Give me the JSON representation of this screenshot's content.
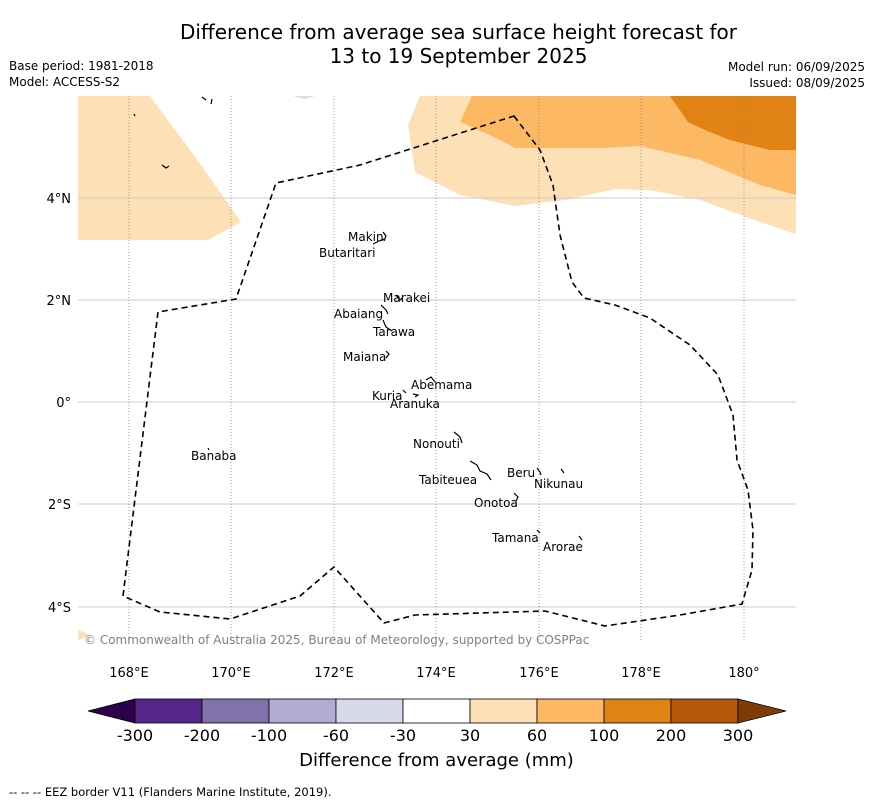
{
  "title": {
    "line1": "Difference from average sea surface height forecast for",
    "line2": "13 to 19 September 2025"
  },
  "meta_left": {
    "base_period": "Base period: 1981-2018",
    "model": "Model: ACCESS-S2"
  },
  "meta_right": {
    "model_run": "Model run: 06/09/2025",
    "issued": "Issued: 08/09/2025"
  },
  "axes": {
    "lon_ticks": [
      "168°E",
      "170°E",
      "172°E",
      "174°E",
      "176°E",
      "178°E",
      "180°"
    ],
    "lat_ticks": [
      "4°N",
      "2°N",
      "0°",
      "2°S",
      "4°S"
    ]
  },
  "places": [
    {
      "name": "Makin"
    },
    {
      "name": "Butaritari"
    },
    {
      "name": "Marakei"
    },
    {
      "name": "Abaiang"
    },
    {
      "name": "Tarawa"
    },
    {
      "name": "Maiana"
    },
    {
      "name": "Abemama"
    },
    {
      "name": "Kuria"
    },
    {
      "name": "Aranuka"
    },
    {
      "name": "Nonouti"
    },
    {
      "name": "Banaba"
    },
    {
      "name": "Beru"
    },
    {
      "name": "Tabiteuea"
    },
    {
      "name": "Nikunau"
    },
    {
      "name": "Onotoa"
    },
    {
      "name": "Tamana"
    },
    {
      "name": "Arorae"
    }
  ],
  "copyright": "© Commonwealth of Australia 2025, Bureau of Meteorology, supported by COSPPac",
  "colorbar": {
    "title": "Difference from average (mm)",
    "ticks": [
      "-300",
      "-200",
      "-100",
      "-60",
      "-30",
      "30",
      "60",
      "100",
      "200",
      "300"
    ],
    "colors": {
      "lt_minus300": "#2d004b",
      "m300_m200": "#542788",
      "m200_m100": "#8073ac",
      "m100_m60": "#b2abd2",
      "m60_m30": "#d8daeb",
      "m30_30": "#ffffff",
      "30_60": "#fee0b6",
      "60_100": "#fdb863",
      "100_200": "#e08214",
      "200_300": "#b35806",
      "gt_300": "#7f3b08"
    }
  },
  "footer": "--  --  -- EEZ border V11 (Flanders Marine Institute, 2019)."
}
